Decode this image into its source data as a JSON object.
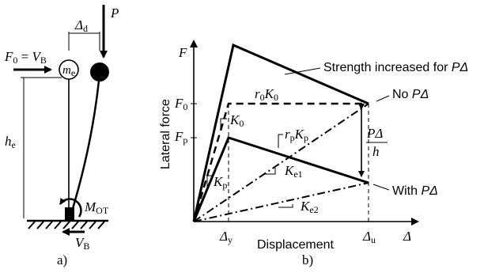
{
  "panel_a": {
    "caption": "a)",
    "force_label": {
      "main": "F",
      "sub0": "0",
      "eq": " = ",
      "v": "V",
      "subB": "B"
    },
    "mass_label": {
      "main": "m",
      "sub": "e"
    },
    "drift_label": {
      "main": "Δ",
      "sub": "d"
    },
    "gravity_label": "P",
    "height_label": {
      "main": "h",
      "sub": "e"
    },
    "moment_label": {
      "main": "M",
      "sub": "OT"
    },
    "base_shear_label": {
      "main": "V",
      "sub": "B"
    }
  },
  "panel_b": {
    "caption": "b)",
    "y_axis_symbol": "F",
    "y_axis_title": "Lateral force",
    "x_axis_title": "Displacement",
    "x_axis_symbol": "Δ",
    "y_ticks": [
      {
        "main": "F",
        "sub": "0"
      },
      {
        "main": "F",
        "sub": "p"
      }
    ],
    "x_ticks": [
      {
        "main": "Δ",
        "sub": "y"
      },
      {
        "main": "Δ",
        "sub": "u"
      }
    ],
    "labels": {
      "r0k0": {
        "r": "r",
        "rsub": "0",
        "k": "K",
        "ksub": "0"
      },
      "k0": {
        "main": "K",
        "sub": "0"
      },
      "rpkp": {
        "r": "r",
        "rsub": "p",
        "k": "K",
        "ksub": "p"
      },
      "kp": {
        "main": "K",
        "sub": "p"
      },
      "ke1": {
        "main": "K",
        "sub": "e1"
      },
      "ke2": {
        "main": "K",
        "sub": "e2"
      },
      "pdelta_fraction": {
        "num": "PΔ",
        "den": "h"
      }
    },
    "curve_labels": {
      "strength_increased": {
        "text": "Strength increased for ",
        "sym": "PΔ"
      },
      "no_pdelta": {
        "text": "No ",
        "sym": "PΔ"
      },
      "with_pdelta": {
        "text": "With ",
        "sym": "PΔ"
      }
    }
  }
}
